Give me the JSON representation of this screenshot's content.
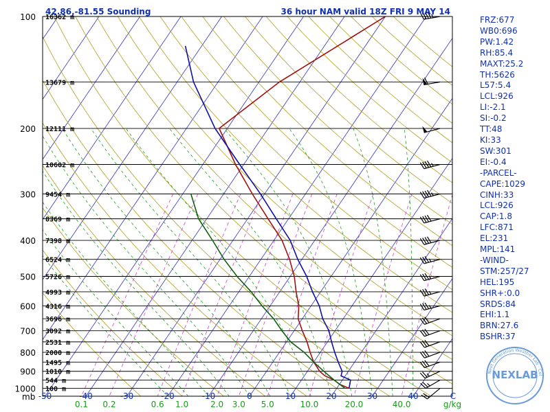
{
  "chart_data": {
    "type": "line",
    "title_left": "42.86,-81.55 Sounding",
    "title_right": "36 hour NAM valid 18Z FRI  9 MAY 14",
    "pressure_levels": [
      100,
      200,
      300,
      400,
      500,
      600,
      700,
      800,
      900,
      1000
    ],
    "pressure_unit": "mb",
    "height_levels": [
      {
        "p": 100,
        "label": "16362 m"
      },
      {
        "p": 150,
        "label": "13679 m"
      },
      {
        "p": 200,
        "label": "12111 m"
      },
      {
        "p": 250,
        "label": "10602 m"
      },
      {
        "p": 300,
        "label": "9454 m"
      },
      {
        "p": 350,
        "label": "8369 m"
      },
      {
        "p": 400,
        "label": "7398 m"
      },
      {
        "p": 450,
        "label": "6524 m"
      },
      {
        "p": 500,
        "label": "5726 m"
      },
      {
        "p": 550,
        "label": "4993 m"
      },
      {
        "p": 600,
        "label": "4316 m"
      },
      {
        "p": 650,
        "label": "3696 m"
      },
      {
        "p": 700,
        "label": "3092 m"
      },
      {
        "p": 750,
        "label": "2531 m"
      },
      {
        "p": 800,
        "label": "2000 m"
      },
      {
        "p": 850,
        "label": "1495 m"
      },
      {
        "p": 900,
        "label": "1010 m"
      },
      {
        "p": 950,
        "label": "544 m"
      },
      {
        "p": 1000,
        "label": "100 m"
      }
    ],
    "temperature_ticks": [
      "-50",
      "-40",
      "-30",
      "-20",
      "-10",
      "0",
      "10",
      "20",
      "30",
      "40"
    ],
    "temperature_unit": "C",
    "mixing_ratio_ticks": [
      "0.1",
      "0.2",
      "0.6",
      "1.0",
      "2.0",
      "3.0",
      "5.0",
      "10.0",
      "20.0",
      "40.0"
    ],
    "mixing_ratio_unit": "g/kg",
    "x_range": [
      -50,
      50
    ],
    "y_range": [
      100,
      1050
    ],
    "series": [
      {
        "name": "temperature",
        "color": "#a01010",
        "points": [
          [
            1000,
            23
          ],
          [
            975,
            20
          ],
          [
            950,
            18
          ],
          [
            925,
            15
          ],
          [
            900,
            13
          ],
          [
            850,
            10
          ],
          [
            800,
            7.5
          ],
          [
            750,
            5
          ],
          [
            700,
            2
          ],
          [
            650,
            -1
          ],
          [
            600,
            -3
          ],
          [
            550,
            -6
          ],
          [
            500,
            -9
          ],
          [
            450,
            -13
          ],
          [
            400,
            -18
          ],
          [
            350,
            -25
          ],
          [
            300,
            -33
          ],
          [
            250,
            -42
          ],
          [
            200,
            -52
          ],
          [
            150,
            -45
          ],
          [
            100,
            -30
          ]
        ]
      },
      {
        "name": "dewpoint",
        "color": "#106010",
        "points": [
          [
            1000,
            22
          ],
          [
            950,
            18
          ],
          [
            900,
            14
          ],
          [
            850,
            10
          ],
          [
            800,
            6
          ],
          [
            750,
            1
          ],
          [
            700,
            -3
          ],
          [
            650,
            -7
          ],
          [
            600,
            -12
          ],
          [
            550,
            -17
          ],
          [
            500,
            -23
          ],
          [
            450,
            -29
          ],
          [
            400,
            -35
          ],
          [
            350,
            -42
          ],
          [
            300,
            -48
          ]
        ]
      },
      {
        "name": "parcel",
        "color": "#1010a0",
        "points": [
          [
            1000,
            23
          ],
          [
            950,
            22
          ],
          [
            926,
            19
          ],
          [
            900,
            18.5
          ],
          [
            850,
            16
          ],
          [
            800,
            13.5
          ],
          [
            750,
            11
          ],
          [
            700,
            8.5
          ],
          [
            650,
            5
          ],
          [
            600,
            2
          ],
          [
            550,
            -2
          ],
          [
            500,
            -6
          ],
          [
            450,
            -11
          ],
          [
            400,
            -16
          ],
          [
            350,
            -23
          ],
          [
            300,
            -31
          ],
          [
            250,
            -41
          ],
          [
            200,
            -53
          ],
          [
            150,
            -66
          ],
          [
            120,
            -74
          ]
        ]
      }
    ],
    "wind_barbs": [
      {
        "p": 100,
        "dir": 260,
        "spd": 45
      },
      {
        "p": 150,
        "dir": 260,
        "spd": 60
      },
      {
        "p": 200,
        "dir": 255,
        "spd": 50
      },
      {
        "p": 250,
        "dir": 255,
        "spd": 45
      },
      {
        "p": 300,
        "dir": 255,
        "spd": 45
      },
      {
        "p": 350,
        "dir": 255,
        "spd": 40
      },
      {
        "p": 400,
        "dir": 255,
        "spd": 40
      },
      {
        "p": 450,
        "dir": 255,
        "spd": 35
      },
      {
        "p": 500,
        "dir": 255,
        "spd": 35
      },
      {
        "p": 550,
        "dir": 255,
        "spd": 35
      },
      {
        "p": 600,
        "dir": 255,
        "spd": 35
      },
      {
        "p": 650,
        "dir": 250,
        "spd": 30
      },
      {
        "p": 700,
        "dir": 250,
        "spd": 30
      },
      {
        "p": 750,
        "dir": 250,
        "spd": 30
      },
      {
        "p": 800,
        "dir": 250,
        "spd": 30
      },
      {
        "p": 850,
        "dir": 250,
        "spd": 30
      },
      {
        "p": 900,
        "dir": 245,
        "spd": 25
      },
      {
        "p": 950,
        "dir": 240,
        "spd": 25
      },
      {
        "p": 1000,
        "dir": 230,
        "spd": 20
      }
    ]
  },
  "stats": [
    "FRZ:677",
    "WB0:696",
    "PW:1.42",
    "RH:85.4",
    "MAXT:25.2",
    "TH:5626",
    "L57:5.4",
    "LCL:926",
    "LI:-2.1",
    "SI:-0.2",
    "TT:48",
    "KI:33",
    "SW:301",
    "EI:-0.4",
    "-PARCEL-",
    "CAPE:1029",
    "CINH:33",
    "LCL:926",
    "CAP:1.8",
    "LFC:871",
    "EL:231",
    "MPL:141",
    "-WIND-",
    "STM:257/27",
    "HEL:195",
    "SHR+:0.0",
    "SRDS:84",
    "EHI:1.1",
    "BRN:27.6",
    "BSHR:37"
  ],
  "logo": {
    "text": "NEXLAB",
    "ring": "Next Generation Weather Lab · College of DuPage"
  },
  "colors": {
    "frame": "#000000",
    "isobar": "#000000",
    "isotherm": "#3030c0",
    "dry_adiabat": "#b0a020",
    "moist_adiabat": "#20a020",
    "mixing_ratio": "#d040d0",
    "label_blue": "#1030b0",
    "label_green": "#1a9a1a",
    "logo": "#6a9ad8"
  }
}
